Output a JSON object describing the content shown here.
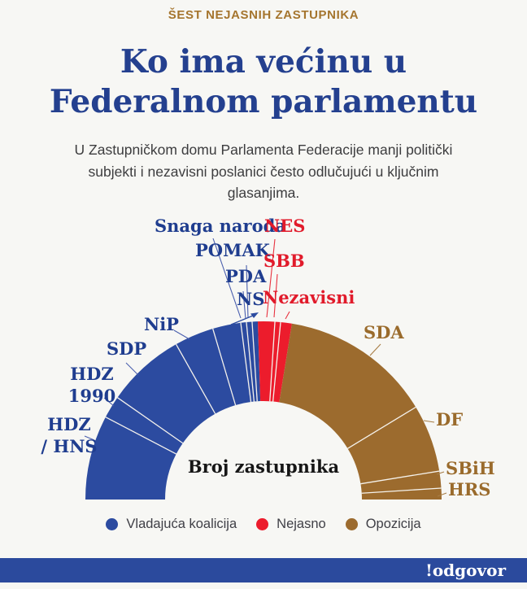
{
  "header": {
    "kicker": "ŠEST NEJASNIH ZASTUPNIKA",
    "title_line1": "Ko ima većinu u",
    "title_line2": "Federalnom parlamentu",
    "subtitle": "U Zastupničkom domu Parlamenta Federacije manji politički subjekti i nezavisni poslanici često odlučujući u ključnim glasanjima."
  },
  "chart_data": {
    "type": "pie",
    "variant": "hemicycle-donut",
    "title": "Broj zastupnika",
    "total_seats": 98,
    "orientation": "half-circle, left to right",
    "groups": [
      {
        "name": "Vladajuća koalicija",
        "color": "#2c4ba0"
      },
      {
        "name": "Nejasno",
        "color": "#ec1c2c"
      },
      {
        "name": "Opozicija",
        "color": "#9c6b2e"
      }
    ],
    "parties": [
      {
        "label": "HDZ / HNS",
        "label_lines": [
          "HDZ",
          "/ HNS"
        ],
        "group": "Vladajuća koalicija",
        "seats": 15
      },
      {
        "label": "HDZ 1990",
        "label_lines": [
          "HDZ",
          "1990"
        ],
        "group": "Vladajuća koalicija",
        "seats": 4
      },
      {
        "label": "SDP",
        "group": "Vladajuća koalicija",
        "seats": 14
      },
      {
        "label": "NiP",
        "group": "Vladajuća koalicija",
        "seats": 7
      },
      {
        "label": "NS",
        "group": "Vladajuća koalicija",
        "seats": 5
      },
      {
        "label": "PDA",
        "group": "Vladajuća koalicija",
        "seats": 1
      },
      {
        "label": "POMAK",
        "group": "Vladajuća koalicija",
        "seats": 1
      },
      {
        "label": "Snaga naroda",
        "group": "Vladajuća koalicija",
        "seats": 1
      },
      {
        "label": "NES",
        "group": "Nejasno",
        "seats": 3
      },
      {
        "label": "SBB",
        "group": "Nejasno",
        "seats": 1
      },
      {
        "label": "Nezavisni",
        "group": "Nejasno",
        "seats": 2
      },
      {
        "label": "SDA",
        "group": "Opozicija",
        "seats": 27
      },
      {
        "label": "DF",
        "group": "Opozicija",
        "seats": 12
      },
      {
        "label": "SBiH",
        "group": "Opozicija",
        "seats": 3
      },
      {
        "label": "HRS",
        "group": "Opozicija",
        "seats": 2
      }
    ],
    "note": "seats estimated from arc angles; no numbers printed on chart"
  },
  "legend": {
    "items": [
      {
        "label": "Vladajuća koalicija",
        "color": "#2c4ba0"
      },
      {
        "label": "Nejasno",
        "color": "#ec1c2c"
      },
      {
        "label": "Opozicija",
        "color": "#9c6b2e"
      }
    ]
  },
  "footer": {
    "logo": "!odgovor"
  },
  "colors": {
    "background": "#f7f7f4",
    "kicker": "#a5752e",
    "title": "#24408f",
    "body_text": "#3d3d3f",
    "label_coalition": "#1f3d8f",
    "label_unclear": "#e11b2b",
    "label_opposition": "#9a6b2c",
    "divider": "#f5f2ec",
    "footer_bar": "#2b4a9d",
    "footer_text": "#ffffff"
  }
}
